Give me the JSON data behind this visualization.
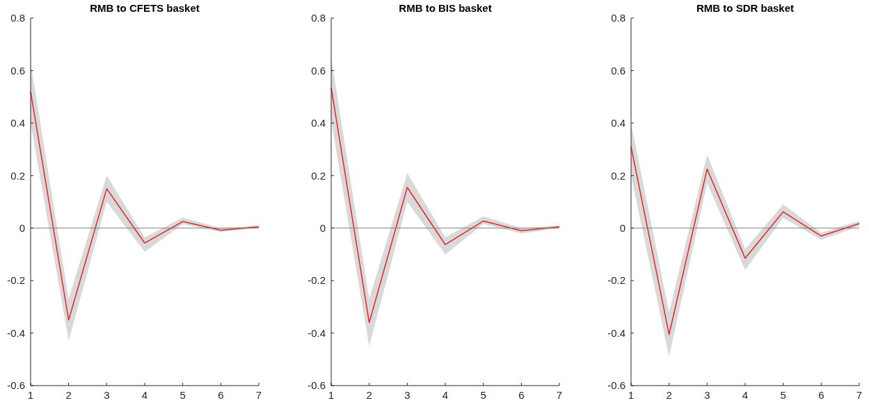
{
  "chart_data": [
    {
      "type": "line",
      "title": "RMB to CFETS basket",
      "x": [
        1,
        2,
        3,
        4,
        5,
        6,
        7
      ],
      "xlim": [
        1,
        7
      ],
      "xticks": [
        1,
        2,
        3,
        4,
        5,
        6,
        7
      ],
      "ylim": [
        -0.6,
        0.8
      ],
      "yticks": [
        -0.6,
        -0.4,
        -0.2,
        0,
        0.2,
        0.4,
        0.6,
        0.8
      ],
      "grid": false,
      "series": [
        {
          "color": "#e0262b",
          "values": [
            0.52,
            -0.35,
            0.15,
            -0.057,
            0.025,
            -0.008,
            0.005
          ],
          "lower": [
            0.4,
            -0.43,
            0.1,
            -0.09,
            0.015,
            -0.015,
            0.0
          ],
          "upper": [
            0.63,
            -0.27,
            0.2,
            -0.035,
            0.04,
            0.0,
            0.01
          ]
        }
      ],
      "ref_lines": [
        {
          "axis": "y",
          "value": 0,
          "color": "#808080"
        }
      ]
    },
    {
      "type": "line",
      "title": "RMB to BIS basket",
      "x": [
        1,
        2,
        3,
        4,
        5,
        6,
        7
      ],
      "xlim": [
        1,
        7
      ],
      "xticks": [
        1,
        2,
        3,
        4,
        5,
        6,
        7
      ],
      "ylim": [
        -0.6,
        0.8
      ],
      "yticks": [
        -0.6,
        -0.4,
        -0.2,
        0,
        0.2,
        0.4,
        0.6,
        0.8
      ],
      "grid": false,
      "series": [
        {
          "color": "#e0262b",
          "values": [
            0.535,
            -0.36,
            0.155,
            -0.063,
            0.027,
            -0.01,
            0.005
          ],
          "lower": [
            0.41,
            -0.45,
            0.1,
            -0.1,
            0.015,
            -0.02,
            0.0
          ],
          "upper": [
            0.65,
            -0.27,
            0.21,
            -0.035,
            0.045,
            0.0,
            0.01
          ]
        }
      ],
      "ref_lines": [
        {
          "axis": "y",
          "value": 0,
          "color": "#808080"
        }
      ]
    },
    {
      "type": "line",
      "title": "RMB to SDR basket",
      "x": [
        1,
        2,
        3,
        4,
        5,
        6,
        7
      ],
      "xlim": [
        1,
        7
      ],
      "xticks": [
        1,
        2,
        3,
        4,
        5,
        6,
        7
      ],
      "ylim": [
        -0.6,
        0.8
      ],
      "yticks": [
        -0.6,
        -0.4,
        -0.2,
        0,
        0.2,
        0.4,
        0.6,
        0.8
      ],
      "grid": false,
      "series": [
        {
          "color": "#e0262b",
          "values": [
            0.31,
            -0.405,
            0.225,
            -0.115,
            0.062,
            -0.03,
            0.017
          ],
          "lower": [
            0.2,
            -0.49,
            0.17,
            -0.16,
            0.04,
            -0.045,
            0.008
          ],
          "upper": [
            0.4,
            -0.32,
            0.28,
            -0.08,
            0.09,
            -0.018,
            0.028
          ]
        }
      ],
      "ref_lines": [
        {
          "axis": "y",
          "value": 0,
          "color": "#808080"
        }
      ]
    }
  ]
}
